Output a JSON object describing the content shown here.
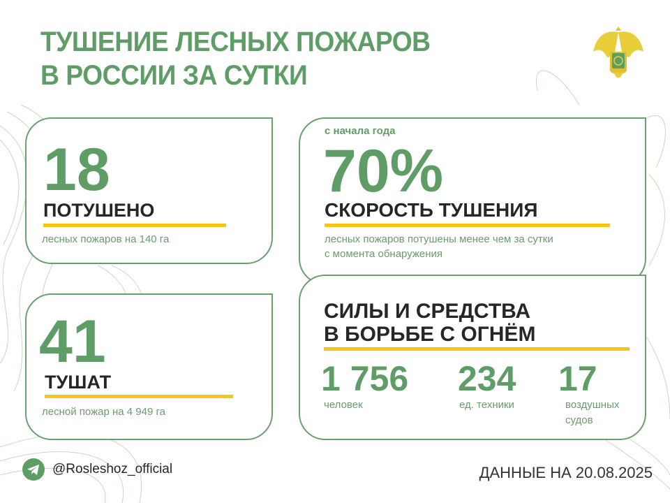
{
  "header": {
    "title_line1": "ТУШЕНИЕ ЛЕСНЫХ ПОЖАРОВ",
    "title_line2": "В РОССИИ ЗА СУТКИ",
    "emblem": "russian-double-headed-eagle-emblem"
  },
  "cards": {
    "extinguished": {
      "value": "18",
      "label": "ПОТУШЕНО",
      "description": "лесных пожаров на 140 га"
    },
    "active": {
      "value": "41",
      "label": "ТУШАТ",
      "description": "лесной пожар на 4 949 га"
    },
    "speed": {
      "caption": "с начала года",
      "value": "70%",
      "label": "СКОРОСТЬ ТУШЕНИЯ",
      "description_line1": "лесных пожаров потушены менее чем за сутки",
      "description_line2": "с момента обнаружения"
    },
    "forces": {
      "title_line1": "СИЛЫ И СРЕДСТВА",
      "title_line2": "В БОРЬБЕ С ОГНЁМ",
      "items": [
        {
          "value": "1 756",
          "label_line1": "человек",
          "label_line2": ""
        },
        {
          "value": "234",
          "label_line1": "ед. техники",
          "label_line2": ""
        },
        {
          "value": "17",
          "label_line1": "воздушных",
          "label_line2": "судов"
        }
      ]
    }
  },
  "footer": {
    "handle": "@Rosleshoz_official",
    "icon": "telegram-icon",
    "date": "ДАННЫЕ НА 20.08.2025"
  },
  "colors": {
    "green": "#5f9d66",
    "yellow": "#f5c518",
    "text": "#262626"
  }
}
